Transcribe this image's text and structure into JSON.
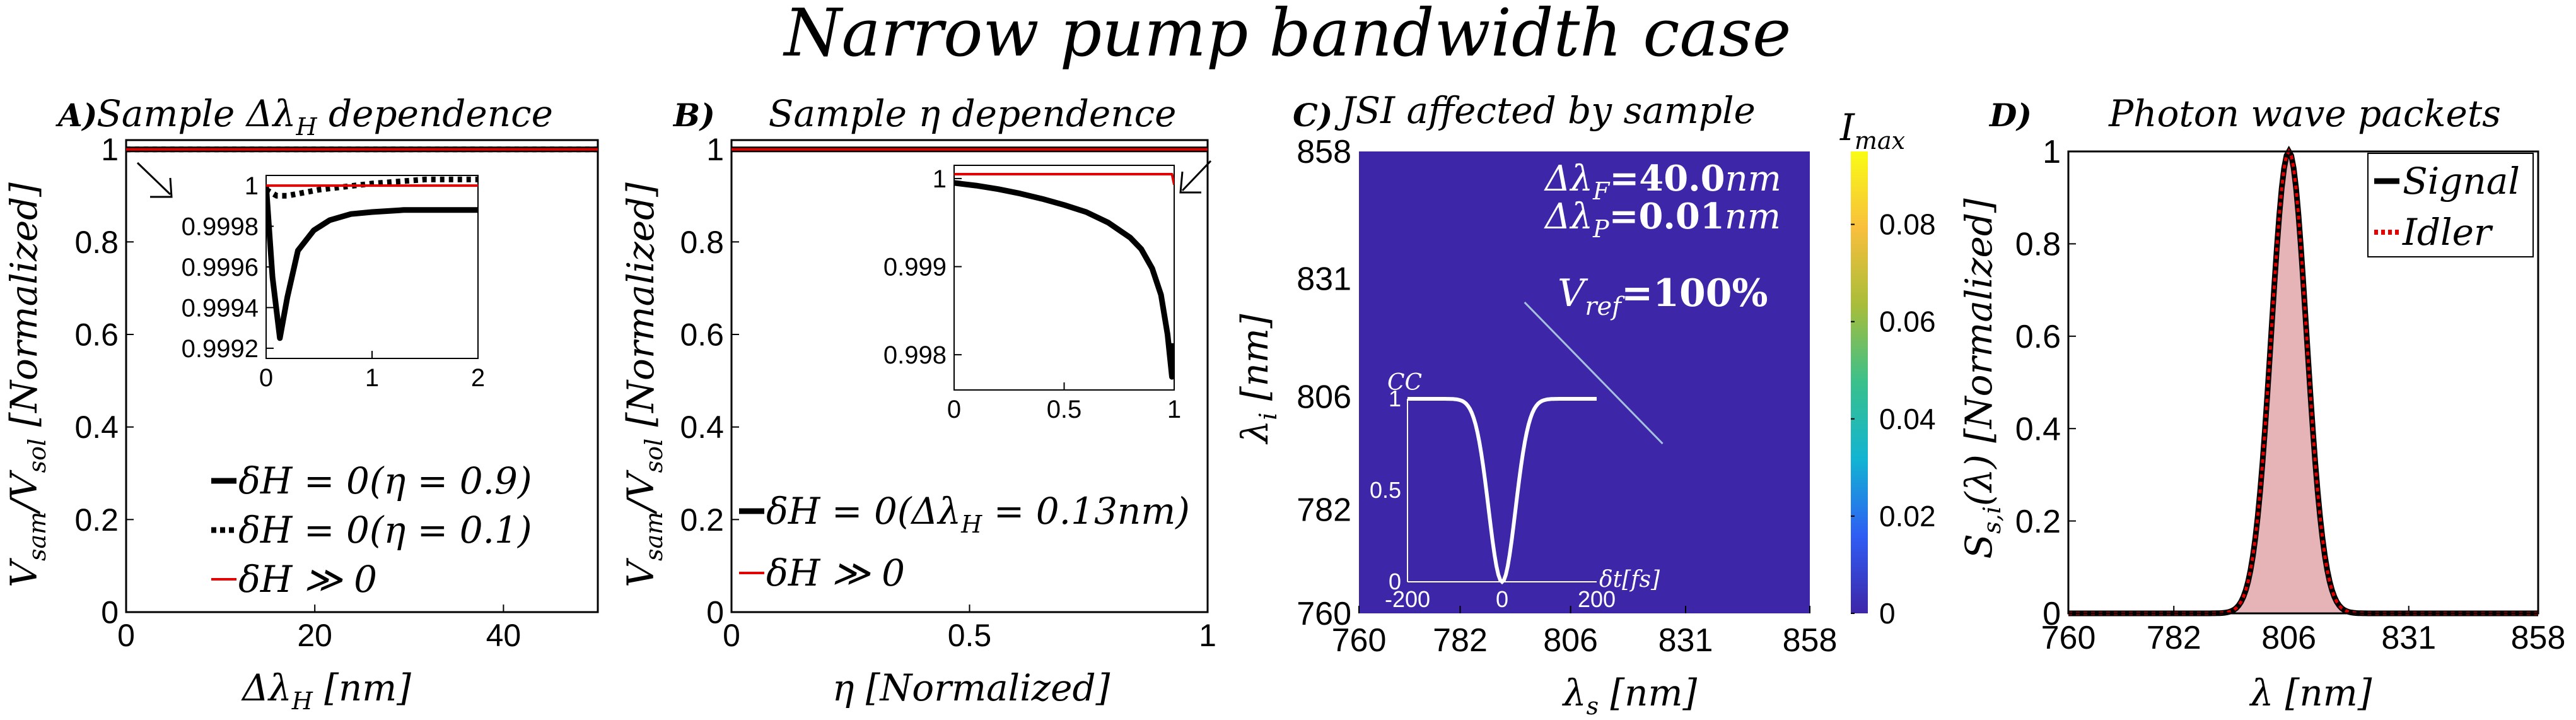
{
  "figure_title": "Narrow pump bandwidth case",
  "colors": {
    "black": "#000000",
    "red": "#e00000",
    "heatmap_bg": "#3e26a8",
    "jsi_line": "#b7dde6",
    "colorbar": [
      "#3e26a8",
      "#2f5df4",
      "#12b4d3",
      "#3ac08c",
      "#a8bd3a",
      "#f8bf3c",
      "#f9fb15"
    ],
    "fill_pink": "#e6b3b6"
  },
  "chart_data": [
    {
      "id": "A",
      "type": "line",
      "panel_label": "A)",
      "title": "Sample Δλ",
      "title_sub": "H",
      "title_suffix": " dependence",
      "xlabel": "Δλ",
      "xlabel_sub": "H",
      "xlabel_unit": " [nm]",
      "ylabel": "V",
      "ylabel_sub1": "sam",
      "ylabel_mid": "/V",
      "ylabel_sub2": "sol",
      "ylabel_unit": " [Normalized]",
      "xlim": [
        0,
        50
      ],
      "ylim": [
        0,
        1.02
      ],
      "xticks": [
        0,
        20,
        40
      ],
      "yticks": [
        0,
        0.2,
        0.4,
        0.6,
        0.8,
        1
      ],
      "xtick_labels": [
        "0",
        "20",
        "40"
      ],
      "ytick_labels": [
        "0",
        "0.2",
        "0.4",
        "0.6",
        "0.8",
        "1"
      ],
      "series": [
        {
          "name": "δH = 0(η = 0.9)",
          "style": "solid-thick",
          "color": "#000000",
          "x": [
            0,
            50
          ],
          "y": [
            1,
            1
          ]
        },
        {
          "name": "δH = 0(η = 0.1)",
          "style": "dotted-thick",
          "color": "#000000",
          "x": [
            0,
            50
          ],
          "y": [
            1,
            1
          ]
        },
        {
          "name": "δH ≫ 0",
          "style": "solid-thin",
          "color": "#e00000",
          "x": [
            0,
            50
          ],
          "y": [
            1,
            1
          ]
        }
      ],
      "inset": {
        "xlim": [
          0,
          2
        ],
        "ylim": [
          0.99915,
          1.00005
        ],
        "xticks": [
          0,
          1,
          2
        ],
        "yticks": [
          0.9992,
          0.9994,
          0.9996,
          0.9998,
          1
        ],
        "xtick_labels": [
          "0",
          "1",
          "2"
        ],
        "ytick_labels": [
          "0.9992",
          "0.9994",
          "0.9996",
          "0.9998",
          "1"
        ],
        "series": [
          {
            "name": "eta0.9",
            "style": "solid-thick",
            "color": "#000000",
            "x": [
              0,
              0.06,
              0.13,
              0.2,
              0.3,
              0.45,
              0.6,
              0.8,
              1.0,
              1.3,
              1.6,
              2.0
            ],
            "y": [
              1.0,
              0.99955,
              0.99925,
              0.99945,
              0.99968,
              0.99978,
              0.99983,
              0.99986,
              0.99987,
              0.99988,
              0.99988,
              0.99988
            ]
          },
          {
            "name": "eta0.1",
            "style": "dotted-thick",
            "color": "#000000",
            "x": [
              0,
              0.1,
              0.2,
              0.5,
              1,
              1.5,
              2
            ],
            "y": [
              0.99998,
              0.99995,
              0.99995,
              0.99998,
              1.00001,
              1.00003,
              1.00003
            ]
          },
          {
            "name": "red",
            "style": "solid-thin",
            "color": "#e00000",
            "x": [
              0,
              2
            ],
            "y": [
              1.0,
              1.0
            ]
          }
        ]
      },
      "legend": [
        {
          "prefix": "δH = 0(η = 0.9)"
        },
        {
          "prefix": "δH = 0(η = 0.1)"
        },
        {
          "prefix": "δH ≫ 0"
        }
      ]
    },
    {
      "id": "B",
      "type": "line",
      "panel_label": "B)",
      "title": "Sample η dependence",
      "xlabel": "η [Normalized]",
      "ylabel": "V",
      "ylabel_sub1": "sam",
      "ylabel_mid": "/V",
      "ylabel_sub2": "sol",
      "ylabel_unit": " [Normalized]",
      "xlim": [
        0,
        1
      ],
      "ylim": [
        0,
        1.02
      ],
      "xticks": [
        0,
        0.5,
        1
      ],
      "yticks": [
        0,
        0.2,
        0.4,
        0.6,
        0.8,
        1
      ],
      "xtick_labels": [
        "0",
        "0.5",
        "1"
      ],
      "ytick_labels": [
        "0",
        "0.2",
        "0.4",
        "0.6",
        "0.8",
        "1"
      ],
      "series": [
        {
          "name": "δH = 0(Δλ_H = 0.13nm)",
          "style": "solid-thick",
          "color": "#000000",
          "x": [
            0,
            1
          ],
          "y": [
            1,
            1
          ]
        },
        {
          "name": "δH ≫ 0",
          "style": "solid-thin",
          "color": "#e00000",
          "x": [
            0,
            1
          ],
          "y": [
            1,
            1
          ]
        }
      ],
      "inset": {
        "xlim": [
          0,
          1
        ],
        "ylim": [
          0.9976,
          1.00015
        ],
        "xticks": [
          0,
          0.5,
          1
        ],
        "yticks": [
          0.998,
          0.999,
          1
        ],
        "xtick_labels": [
          "0",
          "0.5",
          "1"
        ],
        "ytick_labels": [
          "0.998",
          "0.999",
          "1"
        ],
        "series": [
          {
            "name": "black",
            "style": "solid-thick",
            "color": "#000000",
            "x": [
              0,
              0.1,
              0.2,
              0.3,
              0.4,
              0.5,
              0.6,
              0.7,
              0.8,
              0.85,
              0.9,
              0.94,
              0.97,
              0.99,
              1.0
            ],
            "y": [
              0.99995,
              0.99992,
              0.99988,
              0.99983,
              0.99977,
              0.9997,
              0.99962,
              0.9995,
              0.99933,
              0.9992,
              0.99898,
              0.99868,
              0.99823,
              0.99775,
              0.99813
            ]
          },
          {
            "name": "red",
            "style": "solid-thin",
            "color": "#e00000",
            "x": [
              0,
              0.99,
              1.0
            ],
            "y": [
              1.00005,
              1.00005,
              0.99993
            ]
          }
        ]
      },
      "legend": [
        {
          "prefix": "δH = 0(Δλ",
          "sub": "H",
          "suffix": " = 0.13nm)"
        },
        {
          "prefix": "δH ≫ 0"
        }
      ]
    },
    {
      "id": "C",
      "type": "heatmap",
      "panel_label": "C)",
      "title": "JSI affected by sample",
      "xlabel": "λ",
      "xlabel_sub": "s",
      "xlabel_unit": " [nm]",
      "ylabel": "λ",
      "ylabel_sub": "i",
      "ylabel_unit": " [nm]",
      "xlim": [
        760,
        858
      ],
      "ylim": [
        760,
        858
      ],
      "xtick_labels": [
        "760",
        "782",
        "806",
        "831",
        "858"
      ],
      "ytick_labels": [
        "760",
        "782",
        "806",
        "831",
        "858"
      ],
      "ticks": [
        760,
        782,
        806,
        831,
        858
      ],
      "params": {
        "dlf_label": "Δλ",
        "dlf_sub": "F",
        "dlf_value": "=40.0",
        "dlf_unit": "nm",
        "dlp_label": "Δλ",
        "dlp_sub": "P",
        "dlp_value": "=0.01",
        "dlp_unit": "nm",
        "vref_label": "V",
        "vref_sub": "ref",
        "vref_value": "=100%"
      },
      "jsi_line": {
        "x": [
          796,
          826
        ],
        "y": [
          826,
          796
        ]
      },
      "colorbar": {
        "title": "I",
        "title_sub": "max",
        "range": [
          0,
          0.095
        ],
        "ticks": [
          0,
          0.02,
          0.04,
          0.06,
          0.08
        ],
        "tick_labels": [
          "0",
          "0.02",
          "0.04",
          "0.06",
          "0.08"
        ]
      },
      "cc_inset": {
        "ylabel": "CC",
        "xlabel": "δt[fs]",
        "xlim": [
          -200,
          200
        ],
        "ylim": [
          0,
          1
        ],
        "xtick_labels": [
          "-200",
          "0",
          "200"
        ],
        "ytick_labels": [
          "0",
          "0.5",
          "1"
        ],
        "dip_center": 0,
        "dip_width_fs": 40,
        "dip_min": 0
      }
    },
    {
      "id": "D",
      "type": "area",
      "panel_label": "D)",
      "title": "Photon wave packets",
      "xlabel": "λ [nm]",
      "ylabel": "S",
      "ylabel_sub": "s,i",
      "ylabel_unit": "(λ) [Normalized]",
      "xlim": [
        760,
        858
      ],
      "ylim": [
        0,
        1
      ],
      "xticks": [
        760,
        782,
        806,
        831,
        858
      ],
      "yticks": [
        0,
        0.2,
        0.4,
        0.6,
        0.8,
        1
      ],
      "xtick_labels": [
        "760",
        "782",
        "806",
        "831",
        "858"
      ],
      "ytick_labels": [
        "0",
        "0.2",
        "0.4",
        "0.6",
        "0.8",
        "1"
      ],
      "peak": 806,
      "sigma": 5.2,
      "legend": [
        {
          "name": "Signal",
          "style": "solid-thick",
          "color": "#000000"
        },
        {
          "name": "Idler",
          "style": "dotted-red",
          "color": "#e00000"
        }
      ]
    }
  ]
}
